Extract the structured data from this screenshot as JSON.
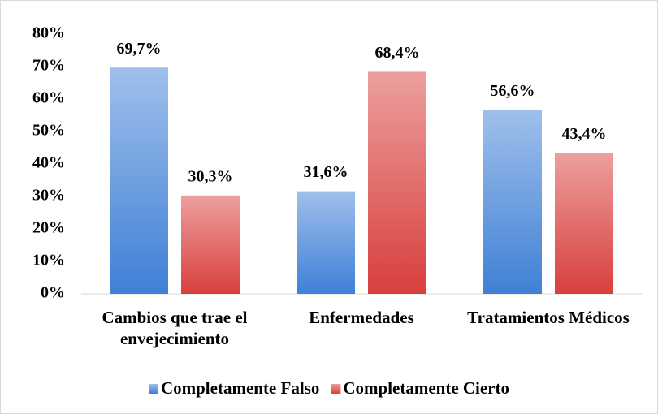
{
  "chart_data": {
    "type": "bar",
    "categories": [
      "Cambios que trae el envejecimiento",
      "Enfermedades",
      "Tratamientos Médicos"
    ],
    "series": [
      {
        "name": "Completamente Falso",
        "color": "#3f80d6",
        "values": [
          69.7,
          31.6,
          56.6
        ],
        "value_labels": [
          "69,7%",
          "31,6%",
          "56,6%"
        ]
      },
      {
        "name": "Completamente Cierto",
        "color": "#d83f3c",
        "values": [
          30.3,
          68.4,
          43.4
        ],
        "value_labels": [
          "30,3%",
          "68,4%",
          "43,4%"
        ]
      }
    ],
    "ylim": [
      0,
      80
    ],
    "yticks": [
      {
        "value": 0,
        "label": "0%"
      },
      {
        "value": 10,
        "label": "10%"
      },
      {
        "value": 20,
        "label": "20%"
      },
      {
        "value": 30,
        "label": "30%"
      },
      {
        "value": 40,
        "label": "40%"
      },
      {
        "value": 50,
        "label": "50%"
      },
      {
        "value": 60,
        "label": "60%"
      },
      {
        "value": 70,
        "label": "70%"
      },
      {
        "value": 80,
        "label": "80%"
      }
    ],
    "grid": false,
    "legend": "bottom"
  }
}
